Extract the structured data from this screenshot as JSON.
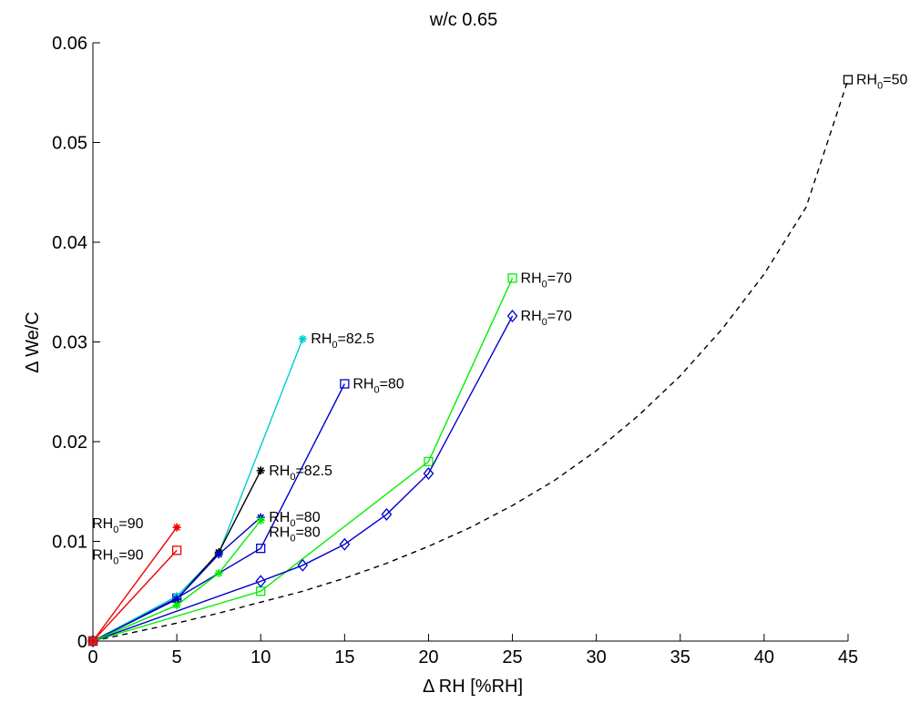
{
  "chart_data": {
    "type": "line",
    "title": "w/c 0.65",
    "xlabel": "Δ RH [%RH]",
    "ylabel": "Δ We/C",
    "xlim": [
      0,
      45
    ],
    "ylim": [
      0,
      0.06
    ],
    "xticks": [
      "0",
      "5",
      "10",
      "15",
      "20",
      "25",
      "30",
      "35",
      "40",
      "45"
    ],
    "yticks": [
      "0",
      "0.01",
      "0.02",
      "0.03",
      "0.04",
      "0.05",
      "0.06"
    ],
    "grid": false,
    "legend": "none",
    "series": [
      {
        "color": "#000000",
        "marker": "square",
        "linestyle": "dashed",
        "x": [
          0,
          2.5,
          5,
          7.5,
          10,
          12.5,
          15,
          17.5,
          20,
          22.5,
          25,
          27.5,
          30,
          32.5,
          35,
          37.5,
          40,
          42.5,
          45
        ],
        "y": [
          0,
          0.0009,
          0.0018,
          0.0028,
          0.0039,
          0.005,
          0.0063,
          0.0078,
          0.0095,
          0.0114,
          0.0136,
          0.0161,
          0.0191,
          0.0226,
          0.0266,
          0.0313,
          0.0368,
          0.0435,
          0.0563
        ],
        "markers_at": [
          45
        ]
      },
      {
        "color": "#00ee00",
        "marker": "square",
        "linestyle": "solid",
        "x": [
          0,
          10,
          20,
          25
        ],
        "y": [
          0,
          0.005,
          0.018,
          0.0364
        ]
      },
      {
        "color": "#0000cc",
        "marker": "diamond",
        "linestyle": "solid",
        "x": [
          0,
          10,
          12.5,
          15,
          17.5,
          20,
          25
        ],
        "y": [
          0,
          0.006,
          0.0076,
          0.0097,
          0.0127,
          0.0168,
          0.0326
        ]
      },
      {
        "color": "#0000cc",
        "marker": "square",
        "linestyle": "solid",
        "x": [
          0,
          5,
          10,
          15
        ],
        "y": [
          0,
          0.0043,
          0.0093,
          0.0258
        ]
      },
      {
        "color": "#00cccc",
        "marker": "star",
        "linestyle": "solid",
        "x": [
          0,
          5,
          7.5,
          12.5
        ],
        "y": [
          0,
          0.0045,
          0.0088,
          0.0303
        ]
      },
      {
        "color": "#000000",
        "marker": "star",
        "linestyle": "solid",
        "x": [
          0,
          5,
          7.5,
          10
        ],
        "y": [
          0,
          0.0042,
          0.0089,
          0.0171
        ]
      },
      {
        "color": "#0000cc",
        "marker": "star",
        "linestyle": "solid",
        "x": [
          0,
          5,
          7.5,
          10
        ],
        "y": [
          0,
          0.0042,
          0.0087,
          0.0124
        ]
      },
      {
        "color": "#00ee00",
        "marker": "star",
        "linestyle": "solid",
        "x": [
          0,
          5,
          7.5,
          10
        ],
        "y": [
          0,
          0.0036,
          0.0068,
          0.0121
        ]
      },
      {
        "color": "#ee0000",
        "marker": "star",
        "linestyle": "solid",
        "x": [
          0,
          5
        ],
        "y": [
          0,
          0.0114
        ]
      },
      {
        "color": "#ee0000",
        "marker": "square",
        "linestyle": "solid",
        "x": [
          0,
          5
        ],
        "y": [
          0,
          0.0091
        ]
      }
    ],
    "annotations": [
      {
        "main": "RH",
        "sub": "0",
        "tail": "=50",
        "x": 45,
        "y": 0.0563,
        "anchor": "right"
      },
      {
        "main": "RH",
        "sub": "0",
        "tail": "=70",
        "x": 25,
        "y": 0.0364,
        "anchor": "right"
      },
      {
        "main": "RH",
        "sub": "0",
        "tail": "=70",
        "x": 25,
        "y": 0.0326,
        "anchor": "right"
      },
      {
        "main": "RH",
        "sub": "0",
        "tail": "=82.5",
        "x": 12.5,
        "y": 0.0303,
        "anchor": "right"
      },
      {
        "main": "RH",
        "sub": "0",
        "tail": "=80",
        "x": 15,
        "y": 0.0258,
        "anchor": "right"
      },
      {
        "main": "RH",
        "sub": "0",
        "tail": "=82.5",
        "x": 10,
        "y": 0.0171,
        "anchor": "right"
      },
      {
        "main": "RH",
        "sub": "0",
        "tail": "=80",
        "x": 10,
        "y": 0.0124,
        "anchor": "right"
      },
      {
        "main": "RH",
        "sub": "0",
        "tail": "=80",
        "x": 10,
        "y": 0.0121,
        "anchor": "right-low"
      },
      {
        "main": "RH",
        "sub": "0",
        "tail": "=90",
        "x": 5,
        "y": 0.0114,
        "anchor": "left"
      },
      {
        "main": "RH",
        "sub": "0",
        "tail": "=90",
        "x": 5,
        "y": 0.0091,
        "anchor": "left-low"
      }
    ]
  }
}
